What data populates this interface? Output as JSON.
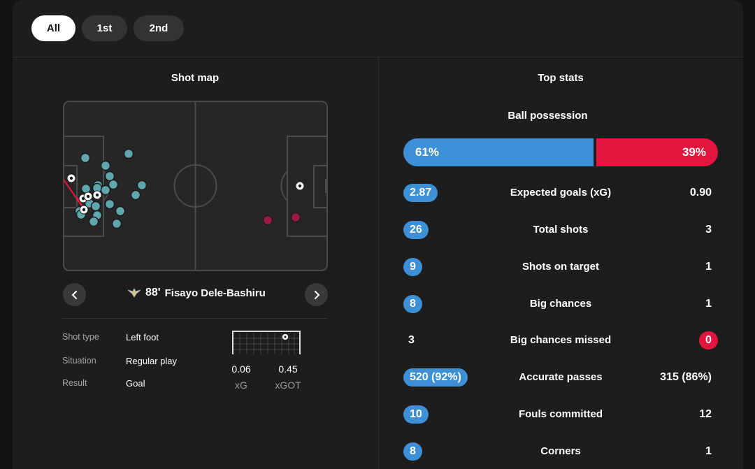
{
  "periods": [
    {
      "label": "All",
      "active": true
    },
    {
      "label": "1st",
      "active": false
    },
    {
      "label": "2nd",
      "active": false
    }
  ],
  "shot_map": {
    "title": "Shot map",
    "selected_shot": {
      "minute": "88'",
      "player": "Fisayo Dele-Bashiru",
      "details": [
        {
          "label": "Shot type",
          "value": "Left foot"
        },
        {
          "label": "Situation",
          "value": "Regular play"
        },
        {
          "label": "Result",
          "value": "Goal"
        }
      ],
      "xg": "0.06",
      "xg_label": "xG",
      "xgot": "0.45",
      "xgot_label": "xGOT"
    },
    "colors": {
      "home_shot": "#5fa7ad",
      "away_shot": "#9b1a45",
      "pitch_line": "#4a4a4a",
      "pitch_bg": "#262626"
    },
    "icons": {
      "prev": "chevron-left-icon",
      "next": "chevron-right-icon",
      "team_badge": "eagle-icon",
      "goal_ball": "football-icon"
    }
  },
  "top_stats": {
    "title": "Top stats",
    "possession": {
      "label": "Ball possession",
      "home": "61%",
      "away": "39%",
      "home_pct": 61
    },
    "rows": [
      {
        "label": "Expected goals (xG)",
        "home": "2.87",
        "away": "0.90",
        "highlight": "home"
      },
      {
        "label": "Total shots",
        "home": "26",
        "away": "3",
        "highlight": "home"
      },
      {
        "label": "Shots on target",
        "home": "9",
        "away": "1",
        "highlight": "home"
      },
      {
        "label": "Big chances",
        "home": "8",
        "away": "1",
        "highlight": "home"
      },
      {
        "label": "Big chances missed",
        "home": "3",
        "away": "0",
        "highlight": "away"
      },
      {
        "label": "Accurate passes",
        "home": "520 (92%)",
        "away": "315 (86%)",
        "highlight": "home"
      },
      {
        "label": "Fouls committed",
        "home": "10",
        "away": "12",
        "highlight": "home"
      },
      {
        "label": "Corners",
        "home": "8",
        "away": "1",
        "highlight": "home"
      }
    ],
    "colors": {
      "home": "#3d8fd6",
      "away": "#e3143e"
    }
  }
}
